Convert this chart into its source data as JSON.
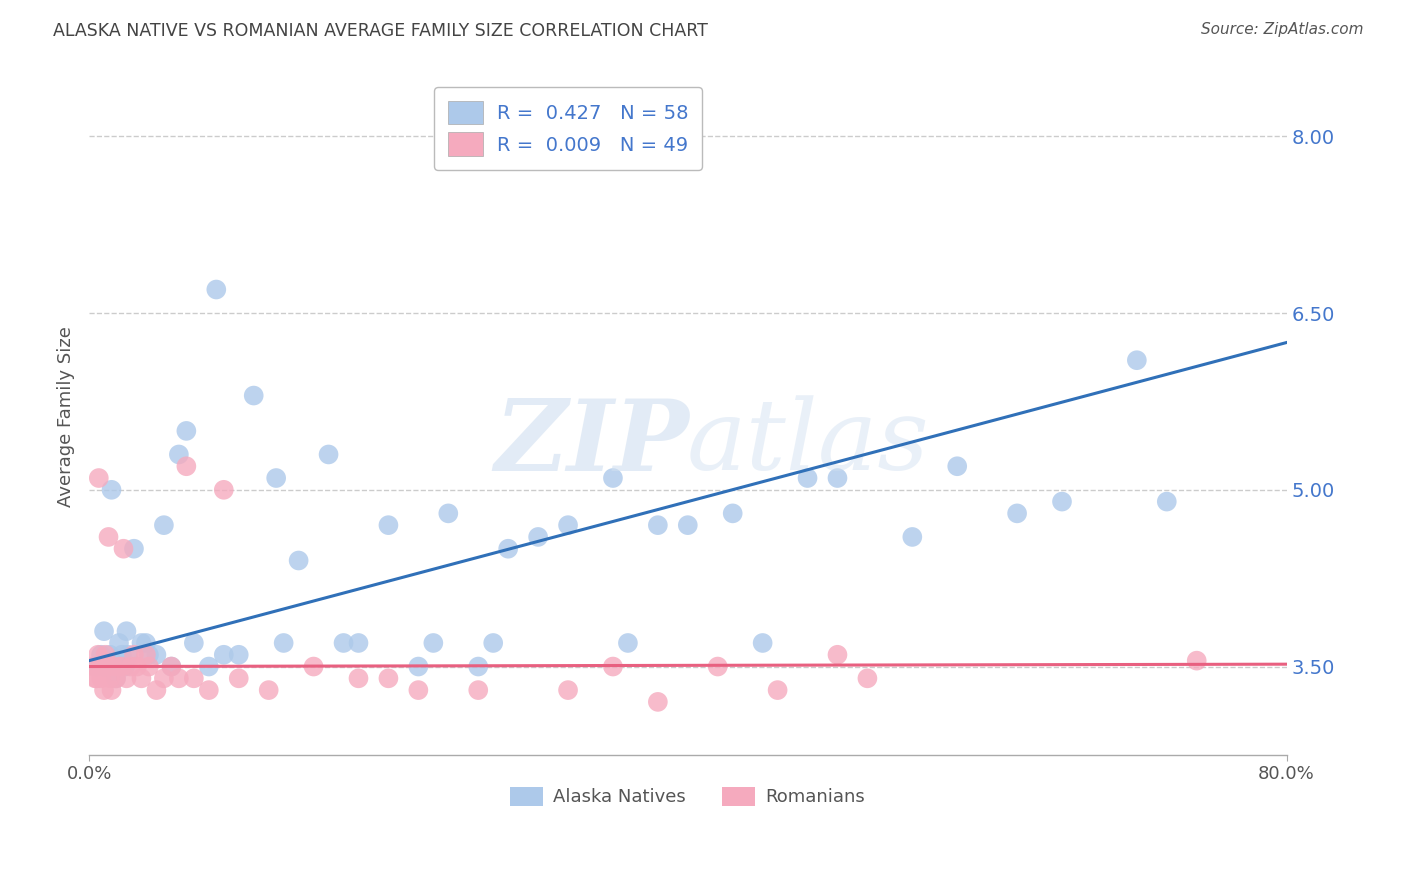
{
  "title": "ALASKA NATIVE VS ROMANIAN AVERAGE FAMILY SIZE CORRELATION CHART",
  "source": "Source: ZipAtlas.com",
  "ylabel": "Average Family Size",
  "xlim": [
    0.0,
    80.0
  ],
  "ylim": [
    2.75,
    8.5
  ],
  "yticks": [
    3.5,
    5.0,
    6.5,
    8.0
  ],
  "ytick_labels": [
    "3.50",
    "5.00",
    "6.50",
    "8.00"
  ],
  "alaska_R": 0.427,
  "alaska_N": 58,
  "romanian_R": 0.009,
  "romanian_N": 49,
  "alaska_color": "#adc9ea",
  "romanian_color": "#f5aabe",
  "alaska_line_color": "#3070b8",
  "romanian_line_color": "#e86080",
  "legend_label_alaska": "Alaska Natives",
  "legend_label_romanian": "Romanians",
  "background_color": "#ffffff",
  "grid_color": "#cccccc",
  "title_color": "#444444",
  "right_tick_color": "#4477cc",
  "watermark_color": "#d0dff0",
  "alaska_x": [
    0.5,
    0.8,
    1.0,
    1.2,
    1.4,
    1.6,
    1.8,
    2.0,
    2.2,
    2.4,
    2.6,
    3.0,
    3.5,
    4.0,
    4.5,
    5.0,
    5.5,
    6.0,
    7.0,
    8.0,
    9.0,
    10.0,
    11.0,
    12.5,
    14.0,
    16.0,
    18.0,
    20.0,
    22.0,
    24.0,
    26.0,
    28.0,
    30.0,
    32.0,
    35.0,
    38.0,
    40.0,
    43.0,
    45.0,
    48.0,
    50.0,
    55.0,
    58.0,
    62.0,
    65.0,
    70.0,
    1.5,
    2.5,
    3.8,
    6.5,
    8.5,
    13.0,
    17.0,
    23.0,
    27.0,
    36.0,
    72.0,
    1.0
  ],
  "alaska_y": [
    3.5,
    3.6,
    3.8,
    3.5,
    3.6,
    3.5,
    3.4,
    3.7,
    3.6,
    3.5,
    3.6,
    4.5,
    3.7,
    3.6,
    3.6,
    4.7,
    3.5,
    5.3,
    3.7,
    3.5,
    3.6,
    3.6,
    5.8,
    5.1,
    4.4,
    5.3,
    3.7,
    4.7,
    3.5,
    4.8,
    3.5,
    4.5,
    4.6,
    4.7,
    5.1,
    4.7,
    4.7,
    4.8,
    3.7,
    5.1,
    5.1,
    4.6,
    5.2,
    4.8,
    4.9,
    6.1,
    5.0,
    3.8,
    3.7,
    5.5,
    6.7,
    3.7,
    3.7,
    3.7,
    3.7,
    3.7,
    4.9,
    3.5
  ],
  "romanian_x": [
    0.3,
    0.5,
    0.6,
    0.7,
    0.8,
    0.9,
    1.0,
    1.1,
    1.2,
    1.4,
    1.5,
    1.6,
    1.8,
    2.0,
    2.2,
    2.5,
    2.8,
    3.0,
    3.2,
    3.5,
    4.0,
    4.5,
    5.0,
    5.5,
    6.0,
    7.0,
    8.0,
    10.0,
    12.0,
    15.0,
    18.0,
    22.0,
    26.0,
    32.0,
    38.0,
    42.0,
    50.0,
    74.0,
    0.4,
    0.65,
    1.3,
    2.3,
    3.8,
    6.5,
    9.0,
    20.0,
    35.0,
    46.0,
    52.0
  ],
  "romanian_y": [
    3.5,
    3.4,
    3.6,
    3.5,
    3.4,
    3.5,
    3.3,
    3.6,
    3.5,
    3.4,
    3.3,
    3.5,
    3.4,
    3.5,
    3.5,
    3.4,
    3.5,
    3.6,
    3.5,
    3.4,
    3.5,
    3.3,
    3.4,
    3.5,
    3.4,
    3.4,
    3.3,
    3.4,
    3.3,
    3.5,
    3.4,
    3.3,
    3.3,
    3.3,
    3.2,
    3.5,
    3.6,
    3.55,
    3.4,
    5.1,
    4.6,
    4.5,
    3.6,
    5.2,
    5.0,
    3.4,
    3.5,
    3.3,
    3.4
  ],
  "blue_line_x0": 0.0,
  "blue_line_y0": 3.55,
  "blue_line_x1": 80.0,
  "blue_line_y1": 6.25,
  "pink_line_x0": 0.0,
  "pink_line_y0": 3.5,
  "pink_line_x1": 80.0,
  "pink_line_y1": 3.52
}
